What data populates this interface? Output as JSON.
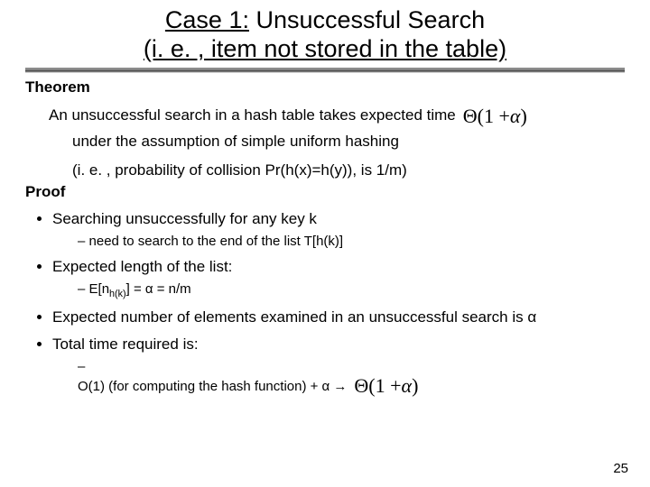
{
  "title": {
    "prefix": "Case 1:",
    "line1_rest": " Unsuccessful Search",
    "line2": "(i. e. , item not stored in the table)"
  },
  "theorem": {
    "label": "Theorem",
    "line1": "An unsuccessful search in a hash table takes expected time",
    "line2": "under the assumption of simple uniform hashing",
    "ie": "(i. e. , probability of collision Pr(h(x)=h(y)), is 1/m)"
  },
  "proof": {
    "label": "Proof",
    "bullets": {
      "b1": "Searching unsuccessfully for any key k",
      "b1_sub": "need to search to the end of the list T[h(k)]",
      "b2": "Expected length of the list:",
      "b2_sub_pre": "E[n",
      "b2_sub_subscript": "h(k)",
      "b2_sub_post": "] = α = n/m",
      "b3": "Expected number of elements examined in an unsuccessful search is α",
      "b4": "Total time required is:",
      "b4_sub": "O(1) (for computing the hash function) + α →"
    }
  },
  "formula": {
    "theta": "Θ",
    "open": "(",
    "one_plus": "1 + ",
    "alpha": "α",
    "close": ")"
  },
  "page_number": "25",
  "colors": {
    "text": "#000000",
    "background": "#ffffff",
    "divider_dark": "#3a3a3a"
  }
}
